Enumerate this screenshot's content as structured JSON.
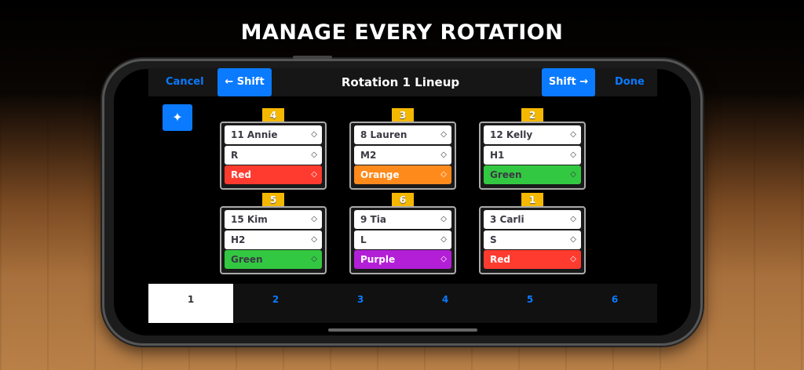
{
  "headline": "MANAGE EVERY ROTATION",
  "nav": {
    "cancel": "Cancel",
    "shift_left": "← Shift",
    "title": "Rotation 1 Lineup",
    "shift_right": "Shift →",
    "done": "Done"
  },
  "wand_icon": "magic-wand-icon",
  "slots": [
    {
      "position": "4",
      "player": "11 Annie",
      "role": "R",
      "color": "Red",
      "color_hex": "#ff3b30",
      "text_hex": "#fff"
    },
    {
      "position": "3",
      "player": "8 Lauren",
      "role": "M2",
      "color": "Orange",
      "color_hex": "#ff8a1c",
      "text_hex": "#fff"
    },
    {
      "position": "2",
      "player": "12 Kelly",
      "role": "H1",
      "color": "Green",
      "color_hex": "#33c841",
      "text_hex": "#3a3a44"
    },
    {
      "position": "5",
      "player": "15 Kim",
      "role": "H2",
      "color": "Green",
      "color_hex": "#33c841",
      "text_hex": "#3a3a44"
    },
    {
      "position": "6",
      "player": "9 Tia",
      "role": "L",
      "color": "Purple",
      "color_hex": "#b31fd6",
      "text_hex": "#fff"
    },
    {
      "position": "1",
      "player": "3 Carli",
      "role": "S",
      "color": "Red",
      "color_hex": "#ff3b30",
      "text_hex": "#fff"
    }
  ],
  "tabs": [
    "1",
    "2",
    "3",
    "4",
    "5",
    "6"
  ],
  "active_tab": "1",
  "accent": "#0a7aff"
}
